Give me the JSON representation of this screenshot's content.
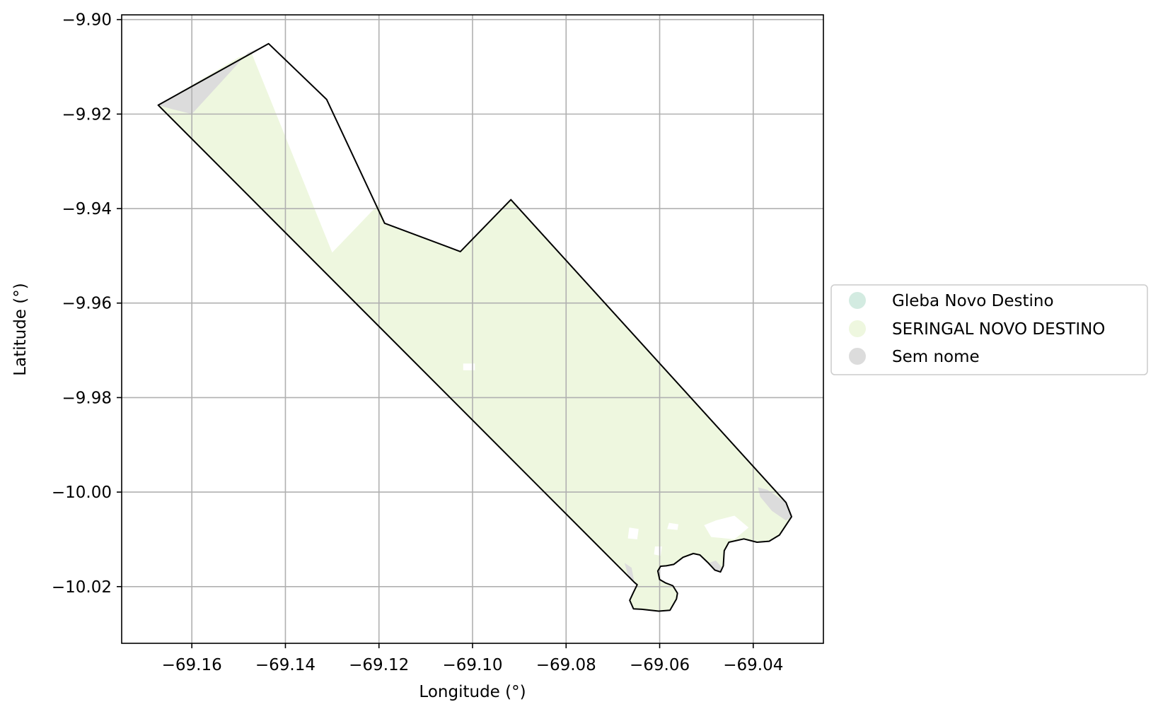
{
  "map": {
    "xlabel": "Longitude (°)",
    "ylabel": "Latitude (°)",
    "xlim": [
      -69.175,
      -69.025
    ],
    "ylim": [
      -10.032,
      -9.899
    ],
    "xticks": [
      -69.16,
      -69.14,
      -69.12,
      -69.1,
      -69.08,
      -69.06,
      -69.04
    ],
    "yticks": [
      -9.9,
      -9.92,
      -9.94,
      -9.96,
      -9.98,
      -10.0,
      -10.02
    ],
    "x_tick_labels": [
      "−69.16",
      "−69.14",
      "−69.12",
      "−69.10",
      "−69.08",
      "−69.06",
      "−69.04"
    ],
    "y_tick_labels": [
      "−9.90",
      "−9.92",
      "−9.94",
      "−9.96",
      "−9.98",
      "−10.00",
      "−10.02"
    ],
    "grid": true,
    "legend": {
      "placement": "right, outside plot",
      "entries": [
        {
          "label": "Gleba Novo Destino",
          "color": "#d3ebe1"
        },
        {
          "label": "SERINGAL NOVO DESTINO",
          "color": "#eef7df"
        },
        {
          "label": "Sem nome",
          "color": "#dcdcdc"
        }
      ]
    },
    "outline": [
      [
        -69.1672,
        -9.9181
      ],
      [
        -69.1436,
        -9.9051
      ],
      [
        -69.1312,
        -9.9169
      ],
      [
        -69.1188,
        -9.9431
      ],
      [
        -69.1026,
        -9.9491
      ],
      [
        -69.0918,
        -9.9381
      ],
      [
        -69.033,
        -10.0022
      ],
      [
        -69.0318,
        -10.0052
      ],
      [
        -69.0344,
        -10.0091
      ],
      [
        -69.0366,
        -10.0104
      ],
      [
        -69.0392,
        -10.0106
      ],
      [
        -69.042,
        -10.0099
      ],
      [
        -69.0452,
        -10.0106
      ],
      [
        -69.0462,
        -10.0124
      ],
      [
        -69.0464,
        -10.0156
      ],
      [
        -69.047,
        -10.0169
      ],
      [
        -69.0482,
        -10.0165
      ],
      [
        -69.0496,
        -10.015
      ],
      [
        -69.0514,
        -10.0133
      ],
      [
        -69.0528,
        -10.013
      ],
      [
        -69.055,
        -10.0138
      ],
      [
        -69.057,
        -10.0153
      ],
      [
        -69.0586,
        -10.0156
      ],
      [
        -69.0598,
        -10.0157
      ],
      [
        -69.0604,
        -10.0167
      ],
      [
        -69.06,
        -10.0185
      ],
      [
        -69.0588,
        -10.0192
      ],
      [
        -69.0572,
        -10.0198
      ],
      [
        -69.0562,
        -10.0214
      ],
      [
        -69.0564,
        -10.0226
      ],
      [
        -69.0578,
        -10.025
      ],
      [
        -69.0602,
        -10.0252
      ],
      [
        -69.0638,
        -10.0248
      ],
      [
        -69.0656,
        -10.0247
      ],
      [
        -69.0664,
        -10.0229
      ],
      [
        -69.0656,
        -10.0212
      ],
      [
        -69.0648,
        -10.0196
      ],
      [
        -69.0654,
        -10.0191
      ]
    ],
    "regions": [
      {
        "name": "SERINGAL NOVO DESTINO",
        "color": "#eef7df",
        "polygons": [
          [
            [
              -69.1672,
              -9.9181
            ],
            [
              -69.15,
              -9.908
            ],
            [
              -69.1472,
              -9.9072
            ],
            [
              -69.13,
              -9.9493
            ],
            [
              -69.12,
              -9.939
            ],
            [
              -69.1188,
              -9.9431
            ],
            [
              -69.1026,
              -9.9491
            ],
            [
              -69.0918,
              -9.9381
            ],
            [
              -69.033,
              -10.0022
            ],
            [
              -69.0318,
              -10.0052
            ],
            [
              -69.0344,
              -10.0091
            ],
            [
              -69.0366,
              -10.0104
            ],
            [
              -69.0392,
              -10.0106
            ],
            [
              -69.042,
              -10.0099
            ],
            [
              -69.0452,
              -10.0106
            ],
            [
              -69.0462,
              -10.0124
            ],
            [
              -69.0464,
              -10.0156
            ],
            [
              -69.047,
              -10.0169
            ],
            [
              -69.0482,
              -10.0165
            ],
            [
              -69.0496,
              -10.015
            ],
            [
              -69.0514,
              -10.0133
            ],
            [
              -69.0528,
              -10.013
            ],
            [
              -69.055,
              -10.0138
            ],
            [
              -69.057,
              -10.0153
            ],
            [
              -69.0586,
              -10.0156
            ],
            [
              -69.0598,
              -10.0157
            ],
            [
              -69.0604,
              -10.0167
            ],
            [
              -69.06,
              -10.0185
            ],
            [
              -69.0588,
              -10.0192
            ],
            [
              -69.0572,
              -10.0198
            ],
            [
              -69.0562,
              -10.0214
            ],
            [
              -69.0564,
              -10.0226
            ],
            [
              -69.0578,
              -10.025
            ],
            [
              -69.0602,
              -10.0252
            ],
            [
              -69.0638,
              -10.0248
            ],
            [
              -69.0656,
              -10.0247
            ],
            [
              -69.0664,
              -10.0229
            ],
            [
              -69.0656,
              -10.0212
            ],
            [
              -69.0648,
              -10.0196
            ],
            [
              -69.0654,
              -10.0191
            ]
          ]
        ]
      },
      {
        "name": "Sem nome",
        "color": "#dcdcdc",
        "polygons": [
          [
            [
              -69.1672,
              -9.9181
            ],
            [
              -69.1445,
              -9.9056
            ],
            [
              -69.148,
              -9.907
            ],
            [
              -69.16,
              -9.92
            ],
            [
              -69.164,
              -9.919
            ]
          ],
          [
            [
              -69.039,
              -9.999
            ],
            [
              -69.037,
              -9.9995
            ],
            [
              -69.033,
              -10.0022
            ],
            [
              -69.0318,
              -10.0052
            ],
            [
              -69.033,
              -10.006
            ],
            [
              -69.036,
              -10.004
            ],
            [
              -69.0385,
              -10.001
            ]
          ],
          [
            [
              -69.047,
              -10.0169
            ],
            [
              -69.0482,
              -10.0165
            ],
            [
              -69.0496,
              -10.015
            ],
            [
              -69.048,
              -10.0145
            ],
            [
              -69.0468,
              -10.0158
            ]
          ],
          [
            [
              -69.0654,
              -10.0191
            ],
            [
              -69.066,
              -10.016
            ],
            [
              -69.0675,
              -10.015
            ],
            [
              -69.0668,
              -10.0175
            ]
          ]
        ]
      }
    ],
    "holes": [
      [
        [
          -69.102,
          -9.9728
        ],
        [
          -69.0995,
          -9.9728
        ],
        [
          -69.0995,
          -9.9742
        ],
        [
          -69.102,
          -9.9742
        ]
      ],
      [
        [
          -69.048,
          -10.006
        ],
        [
          -69.044,
          -10.005
        ],
        [
          -69.041,
          -10.0075
        ],
        [
          -69.044,
          -10.01
        ],
        [
          -69.049,
          -10.0095
        ],
        [
          -69.0505,
          -10.007
        ]
      ],
      [
        [
          -69.058,
          -10.0065
        ],
        [
          -69.056,
          -10.0068
        ],
        [
          -69.0562,
          -10.008
        ],
        [
          -69.0584,
          -10.0078
        ]
      ],
      [
        [
          -69.0665,
          -10.0075
        ],
        [
          -69.0645,
          -10.0078
        ],
        [
          -69.0648,
          -10.01
        ],
        [
          -69.0668,
          -10.0098
        ]
      ],
      [
        [
          -69.061,
          -10.0115
        ],
        [
          -69.0595,
          -10.0115
        ],
        [
          -69.0598,
          -10.0135
        ],
        [
          -69.0612,
          -10.0132
        ]
      ]
    ]
  }
}
